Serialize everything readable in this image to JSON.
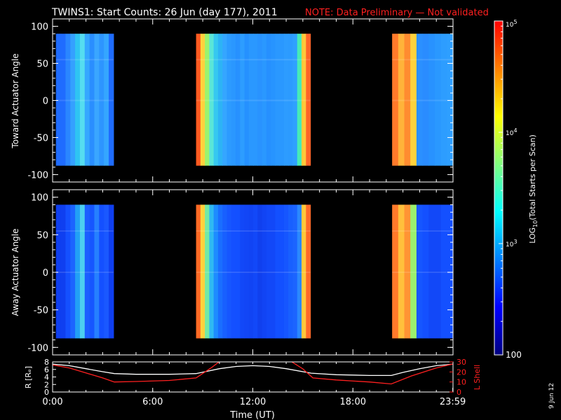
{
  "title": "TWINS1: Start Counts: 26 Jun (day 177), 2011",
  "note": "NOTE: Data Preliminary — Not validated",
  "side_date": "9 Jun 12",
  "colors": {
    "background": "#000000",
    "foreground": "#ffffff",
    "note": "#ff2020",
    "lshell": "#ff2020",
    "radius": "#ffffff"
  },
  "chart_data": [
    {
      "type": "heatmap",
      "name": "toward",
      "ylabel": "Toward Actuator Angle",
      "ylim": [
        -110,
        110
      ],
      "y_ticks": [
        "100",
        "50",
        "0",
        "-50",
        "-100"
      ],
      "y_tick_values": [
        100,
        50,
        0,
        -50,
        -100
      ],
      "angle_range": [
        -88,
        90
      ],
      "x_units": "hours UT",
      "xlim": [
        0,
        24
      ],
      "segments": [
        {
          "start": 0.2,
          "end": 3.65,
          "colors": [
            "#1f6cff",
            "#1f6cff",
            "#2a86ff",
            "#35a0ff",
            "#2fc4f2",
            "#55ddf0",
            "#35a8ff",
            "#2a8eff",
            "#3aa6ff",
            "#2d95ff",
            "#35a6ff",
            "#1f6cff"
          ]
        },
        {
          "start": 8.6,
          "end": 15.45,
          "colors": [
            "#ff5a20",
            "#ffd23c",
            "#9bf36e",
            "#5ae6d8",
            "#36c8f0",
            "#2db3f5",
            "#35a6ff",
            "#2c9bff",
            "#2a97ff",
            "#2791ff",
            "#2d9dff",
            "#2591ff",
            "#2a98ff",
            "#2a98ff",
            "#2993ff",
            "#2a98ff",
            "#2690ff",
            "#2794ff",
            "#2a98ff",
            "#2a98ff",
            "#2d9cff",
            "#2c9bff",
            "#2fa0ff",
            "#46ebb8",
            "#ffc83a",
            "#ff6428"
          ]
        },
        {
          "start": 20.35,
          "end": 24.0,
          "colors": [
            "#ff7a2a",
            "#ffb33a",
            "#ff8c30",
            "#ffd23c",
            "#2b90ff",
            "#2a8cff",
            "#2892ff",
            "#2a98ff",
            "#2d9dff",
            "#2e9fff"
          ]
        }
      ]
    },
    {
      "type": "heatmap",
      "name": "away",
      "ylabel": "Away Actuator Angle",
      "ylim": [
        -110,
        110
      ],
      "y_ticks": [
        "100",
        "50",
        "0",
        "-50",
        "-100"
      ],
      "y_tick_values": [
        100,
        50,
        0,
        -50,
        -100
      ],
      "angle_range": [
        -88,
        90
      ],
      "x_units": "hours UT",
      "xlim": [
        0,
        24
      ],
      "segments": [
        {
          "start": 0.2,
          "end": 3.65,
          "colors": [
            "#0f3ff0",
            "#0f3ff0",
            "#1450ff",
            "#1c64ff",
            "#22a0f5",
            "#4ccff0",
            "#1c5eff",
            "#1656ff",
            "#2680ff",
            "#1450ff",
            "#1a58ff",
            "#0f3ff0"
          ]
        },
        {
          "start": 8.6,
          "end": 15.45,
          "colors": [
            "#ff6a24",
            "#ffd23c",
            "#73e9a6",
            "#2fb9f2",
            "#1e8cff",
            "#1a6eff",
            "#1860ff",
            "#1656ff",
            "#1450ff",
            "#1350ff",
            "#1248f8",
            "#1246f6",
            "#1144f4",
            "#1248f8",
            "#1040ee",
            "#1144f4",
            "#1248f8",
            "#1248f8",
            "#1350ff",
            "#1350ff",
            "#1656ff",
            "#1860ff",
            "#1c64ff",
            "#2a88ff",
            "#ffc83a",
            "#ff6a28"
          ]
        },
        {
          "start": 20.35,
          "end": 24.0,
          "colors": [
            "#ff7a2a",
            "#ffc03c",
            "#ff9434",
            "#9bf06e",
            "#1656ff",
            "#1450ff",
            "#1248f8",
            "#1248f8",
            "#1450ff",
            "#1450ff"
          ]
        }
      ]
    },
    {
      "type": "line",
      "name": "orbit",
      "xlabel": "Time (UT)",
      "ylabel_left": "R [Rₑ]",
      "ylabel_right": "L Shell",
      "xlim": [
        0,
        24
      ],
      "x_tick_values": [
        0,
        6,
        12,
        18,
        23.983
      ],
      "x_ticks": [
        "0:00",
        "6:00",
        "12:00",
        "18:00",
        "23:59"
      ],
      "ylim_left": [
        0,
        8
      ],
      "y_ticks_left": [
        "0",
        "2",
        "4",
        "6",
        "8"
      ],
      "y_tick_values_left": [
        0,
        2,
        4,
        6,
        8
      ],
      "ylim_right": [
        0,
        30
      ],
      "y_ticks_right": [
        "0",
        "10",
        "20",
        "30"
      ],
      "y_tick_values_right": [
        0,
        10,
        20,
        30
      ],
      "series": [
        {
          "axis": "left",
          "color": "#ffffff",
          "x": [
            0,
            1,
            2,
            3,
            3.7,
            5,
            7,
            8.6,
            10,
            11,
            12,
            13,
            14,
            15.5,
            17,
            18,
            19,
            20.3,
            21,
            22,
            23,
            24
          ],
          "y": [
            7.4,
            7.0,
            6.2,
            5.4,
            4.9,
            4.7,
            4.7,
            4.9,
            6.2,
            6.8,
            7.0,
            6.8,
            6.2,
            5.0,
            4.6,
            4.5,
            4.4,
            4.4,
            5.2,
            6.2,
            7.0,
            7.4
          ]
        },
        {
          "axis": "right",
          "color": "#ff2020",
          "x": [
            0,
            1,
            2,
            3,
            3.7,
            5,
            7,
            8.6,
            9.5,
            10.05,
            14.25,
            15,
            15.6,
            17,
            19,
            20.3,
            21.5,
            23,
            24
          ],
          "y": [
            27,
            24,
            19,
            14,
            10,
            10.5,
            11.5,
            14,
            24,
            31,
            31,
            23,
            14,
            12,
            10,
            8,
            16,
            24,
            28
          ]
        }
      ]
    }
  ],
  "colorbar": {
    "label": "LOG10(Total Starts per Scan)",
    "label_main": "LOG",
    "label_sub": "10",
    "label_rest": "(Total Starts per Scan)",
    "scale": "log",
    "range": [
      100,
      100000
    ],
    "ticks": [
      {
        "value": 100,
        "text": "100"
      },
      {
        "value": 1000,
        "base": "10",
        "exp": "3"
      },
      {
        "value": 10000,
        "base": "10",
        "exp": "4"
      },
      {
        "value": 100000,
        "base": "10",
        "exp": "5"
      }
    ],
    "stops": [
      "#000080",
      "#0000ff",
      "#0080ff",
      "#00ffff",
      "#80ff80",
      "#ffff00",
      "#ff8000",
      "#ff0000"
    ]
  }
}
